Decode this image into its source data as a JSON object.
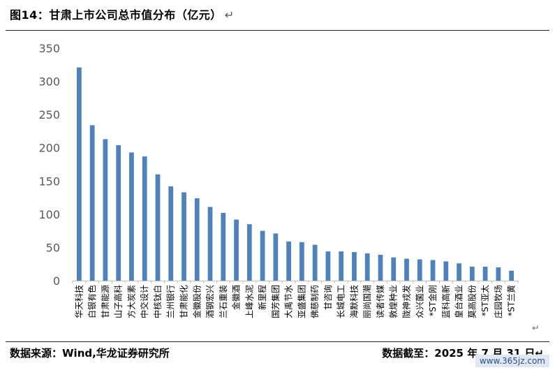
{
  "figure": {
    "title": "图14：甘肃上市公司总市值分布（亿元）",
    "return_mark": "↵"
  },
  "footer": {
    "source": "数据来源：Wind,华龙证券研究所",
    "cutoff": "数据截至：2025 年 7 月 31 日↵"
  },
  "watermark": "www.365jz.com",
  "colors": {
    "bar": "#4f81bd",
    "axis": "#bfbfbf",
    "text": "#595959"
  },
  "chart_data": {
    "type": "bar",
    "title": "",
    "xlabel": "",
    "ylabel": "",
    "ylim": [
      0,
      350
    ],
    "yticks": [
      0,
      50,
      100,
      150,
      200,
      250,
      300,
      350
    ],
    "grid": false,
    "legend": "none",
    "categories": [
      "华天科技",
      "白银有色",
      "甘肃能源",
      "山子高科",
      "方大炭素",
      "中交设计",
      "中核钛白",
      "兰州银行",
      "甘肃能化",
      "金徽股份",
      "酒钢宏兴",
      "兰石重装",
      "金徽酒",
      "上峰水泥",
      "新里程",
      "国芳集团",
      "大禹节水",
      "亚盛集团",
      "佛慈制药",
      "甘咨询",
      "长城电工",
      "海默科技",
      "丽尚国潮",
      "读者传媒",
      "敦煌种业",
      "陇神戎发",
      "众兴菌业",
      "*ST金刚",
      "蓝科高新",
      "皇台酒业",
      "莫高股份",
      "*ST亚太",
      "庄园牧场",
      "*ST兰黄"
    ],
    "values": [
      321,
      234,
      213,
      204,
      193,
      187,
      160,
      142,
      133,
      124,
      111,
      102,
      92,
      85,
      75,
      71,
      59,
      58,
      54,
      44,
      44,
      43,
      41,
      39,
      35,
      33,
      32,
      31,
      29,
      26,
      21,
      21,
      20,
      15
    ]
  }
}
